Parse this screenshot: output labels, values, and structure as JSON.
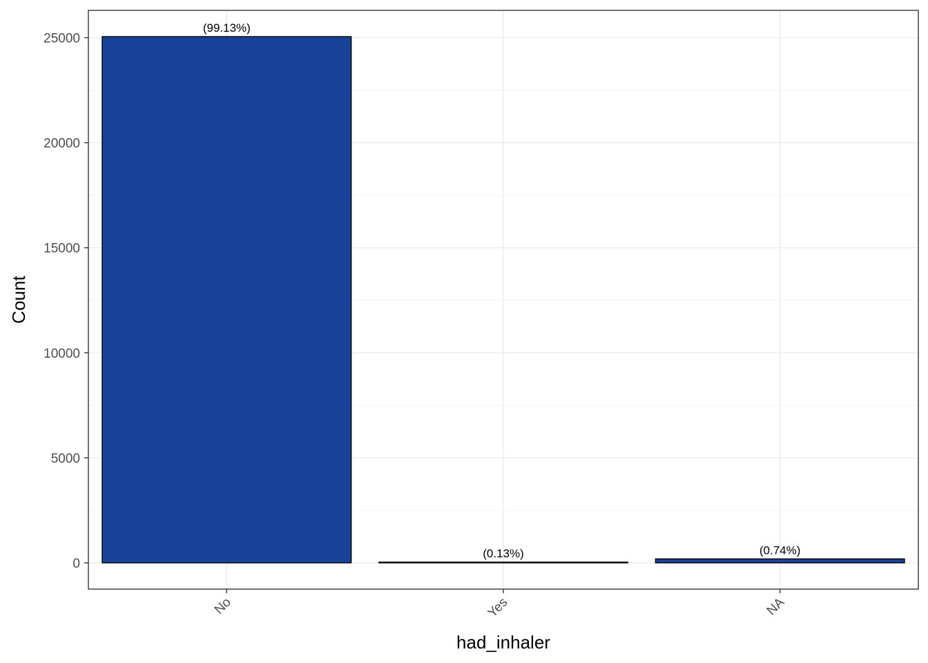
{
  "chart_data": {
    "type": "bar",
    "title": "",
    "xlabel": "had_inhaler",
    "ylabel": "Count",
    "categories": [
      "No",
      "Yes",
      "NA"
    ],
    "values": [
      25050,
      33,
      187
    ],
    "data_labels": [
      "(99.13%)",
      "(0.13%)",
      "(0.74%)"
    ],
    "ylim": [
      -1250,
      26300
    ],
    "y_ticks": [
      0,
      5000,
      10000,
      15000,
      20000,
      25000
    ],
    "y_tick_labels": [
      "0",
      "5000",
      "10000",
      "15000",
      "20000",
      "25000"
    ],
    "x_tick_rotation": -45,
    "grid": true,
    "legend": "none",
    "colors": {
      "bar_fill": "#184399",
      "bar_stroke": "#000000",
      "grid_major": "#ebebeb",
      "grid_minor": "#f3f3f3",
      "panel_border": "#333333",
      "tick_text": "#4d4d4d"
    }
  }
}
